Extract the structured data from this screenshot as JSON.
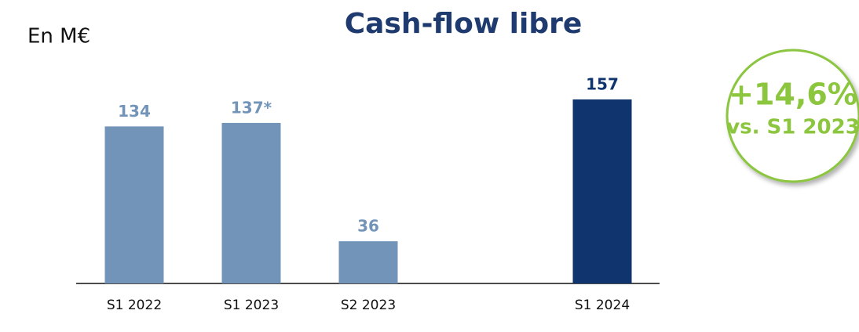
{
  "chart_data": {
    "type": "bar",
    "title": "Cash-flow libre",
    "unit_label": "En M€",
    "categories": [
      "S1 2022",
      "S1 2023",
      "S2 2023",
      null,
      "S1 2024"
    ],
    "values": [
      134,
      137,
      36,
      null,
      157
    ],
    "value_labels": [
      "134",
      "137*",
      "36",
      null,
      "157"
    ],
    "colors": [
      "#7294b8",
      "#7294b8",
      "#7294b8",
      null,
      "#10346e"
    ],
    "annotations": [
      "+14,6%",
      "vs. S1 2023"
    ],
    "annotation_color": "#8cc63f"
  }
}
